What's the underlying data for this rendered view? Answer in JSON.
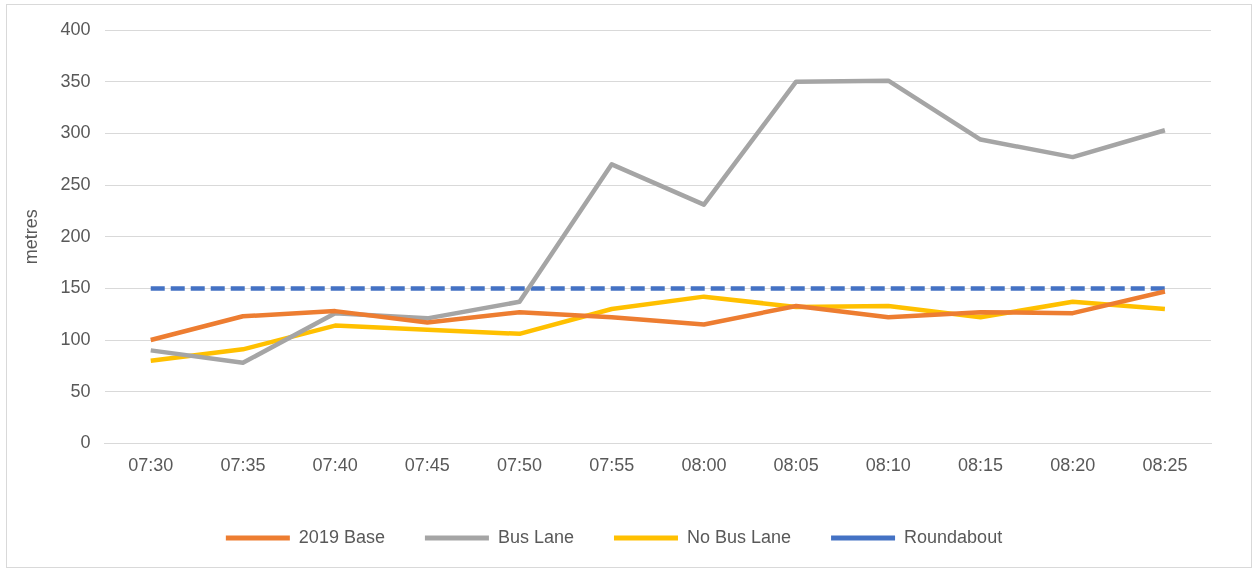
{
  "chart_data": {
    "type": "line",
    "ylabel": "metres",
    "categories": [
      "07:30",
      "07:35",
      "07:40",
      "07:45",
      "07:50",
      "07:55",
      "08:00",
      "08:05",
      "08:10",
      "08:15",
      "08:20",
      "08:25"
    ],
    "series": [
      {
        "name": "2019 Base",
        "color": "#ed7d31",
        "values": [
          100,
          123,
          128,
          117,
          127,
          122,
          115,
          133,
          122,
          127,
          126,
          147
        ]
      },
      {
        "name": "Bus Lane",
        "color": "#a5a5a5",
        "values": [
          90,
          78,
          126,
          121,
          137,
          270,
          231,
          350,
          351,
          294,
          277,
          303
        ]
      },
      {
        "name": "No Bus Lane",
        "color": "#ffc000",
        "values": [
          80,
          91,
          114,
          110,
          106,
          130,
          142,
          132,
          133,
          122,
          137,
          130
        ]
      },
      {
        "name": "Roundabout",
        "color": "#4472c4",
        "line_style": "dashed",
        "values": [
          150,
          150,
          150,
          150,
          150,
          150,
          150,
          150,
          150,
          150,
          150,
          150
        ]
      }
    ],
    "ylim": [
      0,
      400
    ],
    "yticks": [
      0,
      50,
      100,
      150,
      200,
      250,
      300,
      350,
      400
    ],
    "grid": "y",
    "legend": "bottom",
    "marker": "none"
  }
}
